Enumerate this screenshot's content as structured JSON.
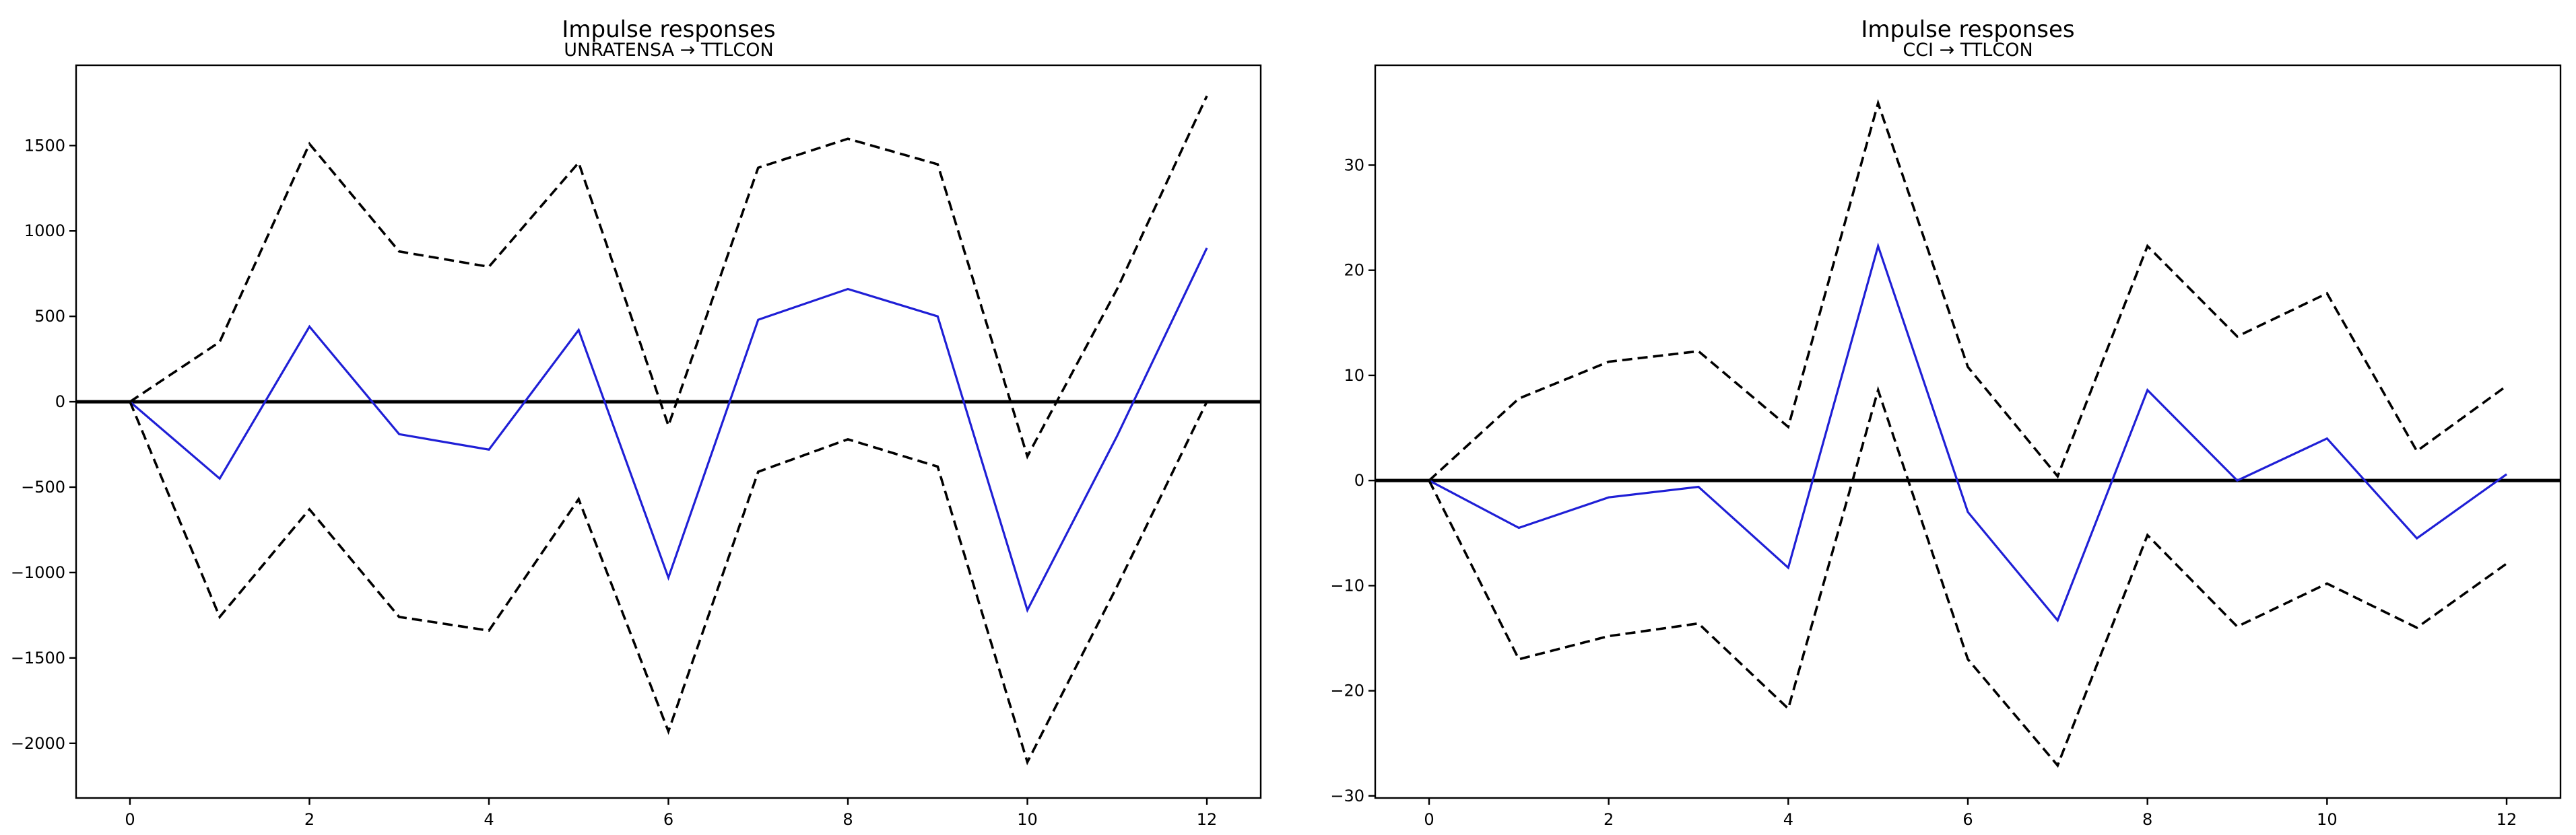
{
  "colors": {
    "response": "#1f1fd6",
    "band": "#000000",
    "zero_line": "#000000"
  },
  "chart_data": [
    {
      "type": "line",
      "title": "Impulse responses",
      "subtitle": "UNRATENSA → TTLCON",
      "x": [
        0,
        1,
        2,
        3,
        4,
        5,
        6,
        7,
        8,
        9,
        10,
        11,
        12
      ],
      "xticks": [
        0,
        2,
        4,
        6,
        8,
        10,
        12
      ],
      "xlim": [
        -0.6,
        12.6
      ],
      "yticks": [
        -2000,
        -1500,
        -1000,
        -500,
        0,
        500,
        1000,
        1500
      ],
      "ytick_labels": [
        "−2000",
        "−1500",
        "−1000",
        "−500",
        "0",
        "500",
        "1000",
        "1500"
      ],
      "ylim": [
        -2320,
        1970
      ],
      "grid": false,
      "series": [
        {
          "role": "response",
          "values": [
            0,
            -450,
            440,
            -190,
            -280,
            420,
            -1030,
            480,
            660,
            500,
            -1220,
            -200,
            900
          ]
        },
        {
          "role": "upper",
          "values": [
            0,
            350,
            1510,
            880,
            790,
            1400,
            -140,
            1370,
            1540,
            1390,
            -320,
            660,
            1790
          ]
        },
        {
          "role": "lower",
          "values": [
            0,
            -1260,
            -630,
            -1260,
            -1340,
            -570,
            -1930,
            -410,
            -220,
            -380,
            -2110,
            -1080,
            0
          ]
        }
      ]
    },
    {
      "type": "line",
      "title": "Impulse responses",
      "subtitle": "CCI → TTLCON",
      "x": [
        0,
        1,
        2,
        3,
        4,
        5,
        6,
        7,
        8,
        9,
        10,
        11,
        12
      ],
      "xticks": [
        0,
        2,
        4,
        6,
        8,
        10,
        12
      ],
      "xlim": [
        -0.6,
        12.6
      ],
      "yticks": [
        -30,
        -20,
        -10,
        0,
        10,
        20,
        30
      ],
      "ytick_labels": [
        "−30",
        "−20",
        "−10",
        "0",
        "10",
        "20",
        "30"
      ],
      "ylim": [
        -30.2,
        39.5
      ],
      "grid": false,
      "series": [
        {
          "role": "response",
          "values": [
            0,
            -4.5,
            -1.6,
            -0.6,
            -8.3,
            22.3,
            -3.0,
            -13.3,
            8.6,
            0,
            4.0,
            -5.5,
            0.6
          ]
        },
        {
          "role": "upper",
          "values": [
            0,
            7.8,
            11.3,
            12.3,
            5.1,
            35.9,
            10.8,
            0.4,
            22.3,
            13.7,
            17.8,
            2.8,
            9.0
          ]
        },
        {
          "role": "lower",
          "values": [
            0,
            -17.0,
            -14.8,
            -13.6,
            -21.7,
            8.6,
            -17.0,
            -27.1,
            -5.2,
            -13.9,
            -9.8,
            -14.0,
            -7.9
          ]
        }
      ]
    }
  ]
}
